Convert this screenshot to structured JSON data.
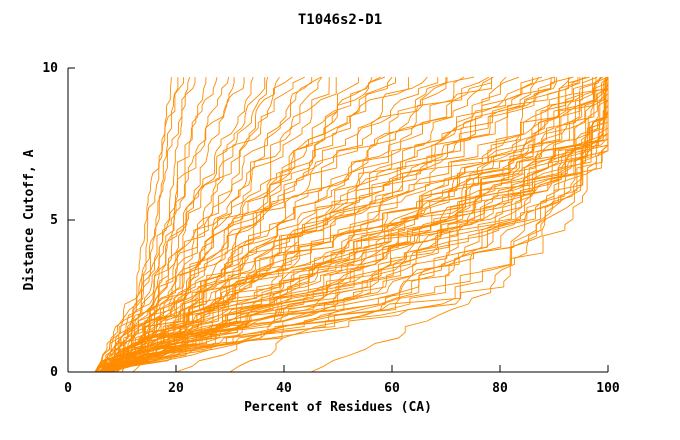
{
  "chart_data": {
    "type": "line",
    "title": "T1046s2-D1",
    "xlabel": "Percent of Residues (CA)",
    "ylabel": "Distance Cutoff, A",
    "xlim": [
      0,
      100
    ],
    "ylim": [
      0,
      10
    ],
    "x_ticks": [
      0,
      20,
      40,
      60,
      80,
      100
    ],
    "y_ticks": [
      0,
      5,
      10
    ],
    "line_color": "#FF8C00",
    "axis_color": "#000000",
    "background": "#FFFFFF",
    "legend": "none",
    "grid": false,
    "y_quantiles": [
      0,
      2.5,
      5,
      7.5,
      9.7
    ],
    "curves": [
      [
        5,
        13,
        15,
        17,
        19
      ],
      [
        6,
        14,
        16,
        18,
        20
      ],
      [
        5,
        12,
        14,
        17,
        21
      ],
      [
        7,
        15,
        18,
        20,
        22
      ],
      [
        6,
        13,
        16,
        19,
        23
      ],
      [
        8,
        16,
        19,
        22,
        25
      ],
      [
        5,
        14,
        18,
        22,
        27
      ],
      [
        6,
        15,
        19,
        24,
        29
      ],
      [
        7,
        16,
        21,
        26,
        31
      ],
      [
        5,
        13,
        18,
        25,
        33
      ],
      [
        8,
        17,
        22,
        28,
        35
      ],
      [
        6,
        15,
        21,
        29,
        37
      ],
      [
        7,
        18,
        25,
        32,
        39
      ],
      [
        9,
        19,
        26,
        33,
        40
      ],
      [
        5,
        15,
        22,
        32,
        43
      ],
      [
        6,
        17,
        25,
        35,
        45
      ],
      [
        7,
        19,
        28,
        38,
        47
      ],
      [
        8,
        20,
        30,
        40,
        49
      ],
      [
        6,
        16,
        26,
        38,
        51
      ],
      [
        7,
        21,
        32,
        43,
        53
      ],
      [
        9,
        22,
        33,
        45,
        55
      ],
      [
        6,
        18,
        30,
        44,
        57
      ],
      [
        8,
        23,
        35,
        47,
        59
      ],
      [
        7,
        20,
        33,
        46,
        60
      ],
      [
        5,
        18,
        30,
        46,
        63
      ],
      [
        6,
        20,
        33,
        49,
        65
      ],
      [
        7,
        22,
        36,
        52,
        67
      ],
      [
        8,
        24,
        38,
        54,
        69
      ],
      [
        6,
        19,
        34,
        52,
        71
      ],
      [
        7,
        23,
        39,
        56,
        73
      ],
      [
        9,
        25,
        41,
        58,
        75
      ],
      [
        6,
        21,
        38,
        57,
        77
      ],
      [
        8,
        26,
        43,
        60,
        78
      ],
      [
        5,
        22,
        40,
        60,
        80
      ],
      [
        6,
        25,
        43,
        63,
        81
      ],
      [
        7,
        28,
        46,
        65,
        82
      ],
      [
        8,
        30,
        48,
        67,
        83
      ],
      [
        6,
        24,
        44,
        66,
        84
      ],
      [
        7,
        27,
        47,
        68,
        85
      ],
      [
        9,
        31,
        50,
        70,
        86
      ],
      [
        6,
        26,
        46,
        69,
        87
      ],
      [
        8,
        29,
        49,
        71,
        88
      ],
      [
        7,
        25,
        47,
        72,
        89
      ],
      [
        5,
        23,
        45,
        71,
        90
      ],
      [
        6,
        28,
        50,
        74,
        91
      ],
      [
        8,
        32,
        53,
        76,
        92
      ],
      [
        5,
        30,
        55,
        78,
        93
      ],
      [
        6,
        33,
        57,
        79,
        94
      ],
      [
        7,
        36,
        60,
        81,
        94
      ],
      [
        5,
        28,
        54,
        79,
        95
      ],
      [
        6,
        32,
        58,
        82,
        95
      ],
      [
        8,
        38,
        62,
        83,
        96
      ],
      [
        5,
        26,
        52,
        80,
        96
      ],
      [
        6,
        35,
        61,
        84,
        96
      ],
      [
        7,
        40,
        65,
        85,
        97
      ],
      [
        5,
        29,
        56,
        83,
        97
      ],
      [
        6,
        34,
        62,
        86,
        97
      ],
      [
        8,
        42,
        67,
        87,
        98
      ],
      [
        5,
        31,
        59,
        86,
        98
      ],
      [
        6,
        37,
        64,
        88,
        98
      ],
      [
        7,
        44,
        69,
        89,
        98
      ],
      [
        5,
        33,
        61,
        88,
        99
      ],
      [
        6,
        39,
        66,
        90,
        99
      ],
      [
        8,
        46,
        71,
        91,
        99
      ],
      [
        5,
        35,
        63,
        90,
        99
      ],
      [
        6,
        41,
        68,
        92,
        99
      ],
      [
        7,
        48,
        73,
        93,
        100
      ],
      [
        5,
        36,
        65,
        92,
        100
      ],
      [
        6,
        43,
        70,
        94,
        100
      ],
      [
        8,
        50,
        75,
        95,
        100
      ],
      [
        5,
        38,
        67,
        94,
        100
      ],
      [
        6,
        45,
        72,
        95,
        100
      ],
      [
        7,
        52,
        77,
        96,
        100
      ],
      [
        5,
        40,
        69,
        95,
        100
      ],
      [
        6,
        47,
        74,
        96,
        100
      ],
      [
        8,
        55,
        79,
        97,
        100
      ],
      [
        5,
        42,
        71,
        96,
        100
      ],
      [
        6,
        50,
        76,
        97,
        100
      ],
      [
        7,
        58,
        81,
        98,
        100
      ],
      [
        5,
        45,
        73,
        97,
        100
      ],
      [
        6,
        55,
        78,
        95,
        100
      ],
      [
        7,
        60,
        82,
        96,
        100
      ],
      [
        5,
        52,
        80,
        97,
        100
      ],
      [
        6,
        65,
        85,
        97,
        100
      ],
      [
        8,
        70,
        88,
        98,
        100
      ],
      [
        5,
        62,
        84,
        98,
        100
      ],
      [
        6,
        68,
        87,
        98,
        100
      ],
      [
        7,
        74,
        90,
        99,
        100
      ],
      [
        5,
        58,
        83,
        98,
        100
      ],
      [
        6,
        72,
        89,
        99,
        100
      ],
      [
        45,
        75,
        88,
        96,
        100
      ],
      [
        30,
        60,
        80,
        94,
        100
      ],
      [
        20,
        50,
        72,
        90,
        100
      ],
      [
        10,
        20,
        28,
        36,
        44
      ],
      [
        12,
        24,
        34,
        44,
        56
      ],
      [
        10,
        18,
        24,
        30,
        38
      ]
    ]
  }
}
